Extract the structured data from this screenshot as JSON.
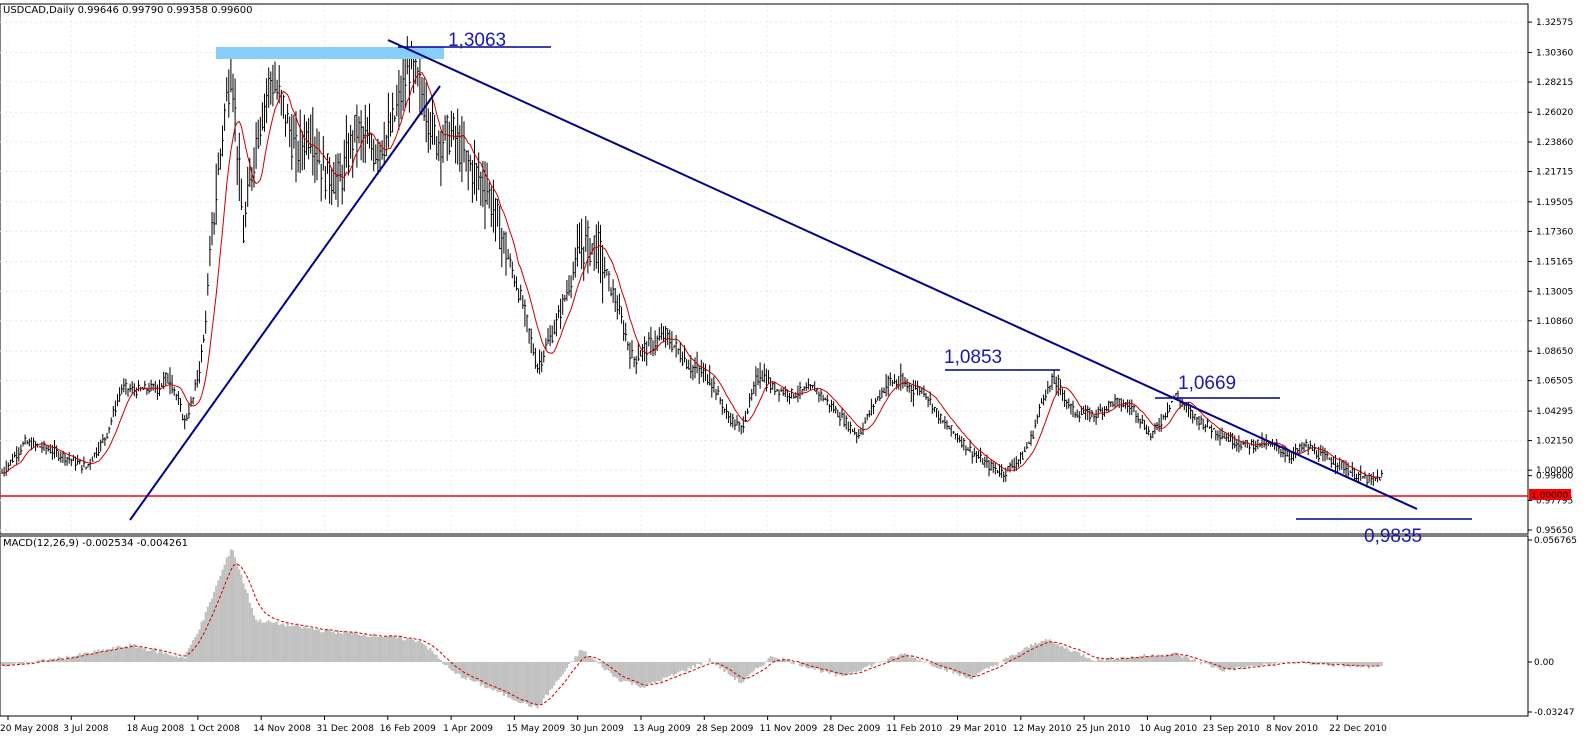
{
  "header": {
    "symbol": "USDCAD,Daily",
    "ohlc": "0.99646 0.99790 0.99358 0.99600"
  },
  "indicator": {
    "label": "MACD(12,26,9) -0.002534 -0.004261"
  },
  "colors": {
    "bars": "#000000",
    "ma": "#cc0000",
    "trend": "#00008b",
    "resistance_zone": "#87cefa",
    "level_line": "#ff0000",
    "macd_hist": "#c0c0c0",
    "macd_signal": "#cc0000",
    "annotation": "#1a1aa8"
  },
  "price_axis": {
    "ticks": [
      "1.32575",
      "1.30360",
      "1.28215",
      "1.26020",
      "1.23860",
      "1.21715",
      "1.19505",
      "1.17360",
      "1.15165",
      "1.13005",
      "1.10860",
      "1.08650",
      "1.06505",
      "1.04295",
      "1.02150",
      "1.00000",
      "0.99600",
      "0.97795",
      "0.95650"
    ],
    "current_price_label": "1.00000"
  },
  "macd_axis": {
    "ticks": [
      "0.056765",
      "0.00",
      "-0.03247"
    ]
  },
  "date_axis": {
    "labels": [
      "20 May 2008",
      "3 Jul 2008",
      "18 Aug 2008",
      "1 Oct 2008",
      "14 Nov 2008",
      "31 Dec 2008",
      "16 Feb 2009",
      "1 Apr 2009",
      "15 May 2009",
      "30 Jun 2009",
      "13 Aug 2009",
      "28 Sep 2009",
      "11 Nov 2009",
      "28 Dec 2009",
      "11 Feb 2010",
      "29 Mar 2010",
      "12 May 2010",
      "25 Jun 2010",
      "10 Aug 2010",
      "23 Sep 2010",
      "8 Nov 2010",
      "22 Dec 2010"
    ]
  },
  "annotations": {
    "high": "1,3063",
    "mid_high": "1,0853",
    "recent_high": "1,0669",
    "low": "0,9835"
  },
  "chart_data": {
    "type": "line",
    "subtype": "ohlc-bars",
    "title": "USDCAD,Daily",
    "x_type": "date",
    "ylim": [
      0.9565,
      1.3258
    ],
    "grid": true,
    "series": [
      {
        "name": "USDCAD",
        "points": [
          [
            "2008-05-20",
            0.998
          ],
          [
            "2008-06-05",
            1.02
          ],
          [
            "2008-06-20",
            1.016
          ],
          [
            "2008-07-03",
            1.01
          ],
          [
            "2008-07-18",
            1.002
          ],
          [
            "2008-08-01",
            1.025
          ],
          [
            "2008-08-12",
            1.06
          ],
          [
            "2008-08-22",
            1.058
          ],
          [
            "2008-09-05",
            1.06
          ],
          [
            "2008-09-15",
            1.068
          ],
          [
            "2008-09-25",
            1.035
          ],
          [
            "2008-10-01",
            1.052
          ],
          [
            "2008-10-08",
            1.09
          ],
          [
            "2008-10-15",
            1.18
          ],
          [
            "2008-10-23",
            1.26
          ],
          [
            "2008-10-28",
            1.295
          ],
          [
            "2008-11-05",
            1.17
          ],
          [
            "2008-11-14",
            1.24
          ],
          [
            "2008-11-24",
            1.285
          ],
          [
            "2008-12-03",
            1.265
          ],
          [
            "2008-12-12",
            1.23
          ],
          [
            "2008-12-22",
            1.248
          ],
          [
            "2008-12-31",
            1.218
          ],
          [
            "2009-01-12",
            1.21
          ],
          [
            "2009-01-23",
            1.248
          ],
          [
            "2009-02-05",
            1.232
          ],
          [
            "2009-02-16",
            1.245
          ],
          [
            "2009-03-02",
            1.295
          ],
          [
            "2009-03-10",
            1.275
          ],
          [
            "2009-03-20",
            1.24
          ],
          [
            "2009-04-01",
            1.245
          ],
          [
            "2009-04-10",
            1.225
          ],
          [
            "2009-04-25",
            1.205
          ],
          [
            "2009-05-08",
            1.16
          ],
          [
            "2009-05-20",
            1.12
          ],
          [
            "2009-05-30",
            1.075
          ],
          [
            "2009-06-12",
            1.105
          ],
          [
            "2009-06-30",
            1.162
          ],
          [
            "2009-07-10",
            1.165
          ],
          [
            "2009-07-25",
            1.12
          ],
          [
            "2009-08-05",
            1.08
          ],
          [
            "2009-08-13",
            1.088
          ],
          [
            "2009-08-28",
            1.098
          ],
          [
            "2009-09-15",
            1.075
          ],
          [
            "2009-09-28",
            1.068
          ],
          [
            "2009-10-10",
            1.04
          ],
          [
            "2009-10-20",
            1.03
          ],
          [
            "2009-11-02",
            1.072
          ],
          [
            "2009-11-11",
            1.06
          ],
          [
            "2009-11-25",
            1.055
          ],
          [
            "2009-12-10",
            1.06
          ],
          [
            "2009-12-28",
            1.04
          ],
          [
            "2010-01-10",
            1.025
          ],
          [
            "2010-01-22",
            1.05
          ],
          [
            "2010-02-01",
            1.065
          ],
          [
            "2010-02-11",
            1.062
          ],
          [
            "2010-02-25",
            1.058
          ],
          [
            "2010-03-10",
            1.035
          ],
          [
            "2010-03-20",
            1.025
          ],
          [
            "2010-03-29",
            1.015
          ],
          [
            "2010-04-10",
            1.004
          ],
          [
            "2010-04-22",
            0.998
          ],
          [
            "2010-05-05",
            1.01
          ],
          [
            "2010-05-12",
            1.025
          ],
          [
            "2010-05-20",
            1.055
          ],
          [
            "2010-05-28",
            1.065
          ],
          [
            "2010-06-10",
            1.042
          ],
          [
            "2010-06-25",
            1.04
          ],
          [
            "2010-07-08",
            1.05
          ],
          [
            "2010-07-22",
            1.045
          ],
          [
            "2010-08-03",
            1.025
          ],
          [
            "2010-08-10",
            1.035
          ],
          [
            "2010-08-20",
            1.055
          ],
          [
            "2010-09-01",
            1.04
          ],
          [
            "2010-09-15",
            1.03
          ],
          [
            "2010-09-23",
            1.025
          ],
          [
            "2010-10-08",
            1.018
          ],
          [
            "2010-10-20",
            1.02
          ],
          [
            "2010-11-01",
            1.016
          ],
          [
            "2010-11-08",
            1.01
          ],
          [
            "2010-11-20",
            1.018
          ],
          [
            "2010-12-01",
            1.01
          ],
          [
            "2010-12-15",
            1.004
          ],
          [
            "2010-12-22",
            0.998
          ],
          [
            "2011-01-05",
            0.992
          ],
          [
            "2011-01-12",
            0.996
          ]
        ]
      },
      {
        "name": "MACD",
        "points": [
          [
            "2008-05-20",
            -0.002
          ],
          [
            "2008-07-03",
            0.002
          ],
          [
            "2008-08-18",
            0.008
          ],
          [
            "2008-09-25",
            0.002
          ],
          [
            "2008-10-08",
            0.02
          ],
          [
            "2008-10-28",
            0.055
          ],
          [
            "2008-11-14",
            0.02
          ],
          [
            "2008-12-31",
            0.015
          ],
          [
            "2009-02-16",
            0.012
          ],
          [
            "2009-03-10",
            0.01
          ],
          [
            "2009-04-01",
            -0.005
          ],
          [
            "2009-05-15",
            -0.018
          ],
          [
            "2009-05-30",
            -0.022
          ],
          [
            "2009-06-30",
            0.006
          ],
          [
            "2009-07-25",
            -0.008
          ],
          [
            "2009-08-13",
            -0.012
          ],
          [
            "2009-09-28",
            0.001
          ],
          [
            "2009-10-20",
            -0.01
          ],
          [
            "2009-11-11",
            0.003
          ],
          [
            "2009-12-28",
            -0.007
          ],
          [
            "2010-02-11",
            0.004
          ],
          [
            "2010-03-29",
            -0.008
          ],
          [
            "2010-05-20",
            0.011
          ],
          [
            "2010-06-25",
            0.001
          ],
          [
            "2010-08-20",
            0.004
          ],
          [
            "2010-09-23",
            -0.004
          ],
          [
            "2010-11-08",
            0.0
          ],
          [
            "2010-12-22",
            -0.002
          ],
          [
            "2011-01-12",
            -0.0025
          ]
        ]
      }
    ],
    "horizontal_levels": [
      1.3063,
      1.0853,
      1.0669,
      1.0,
      0.9835
    ]
  }
}
